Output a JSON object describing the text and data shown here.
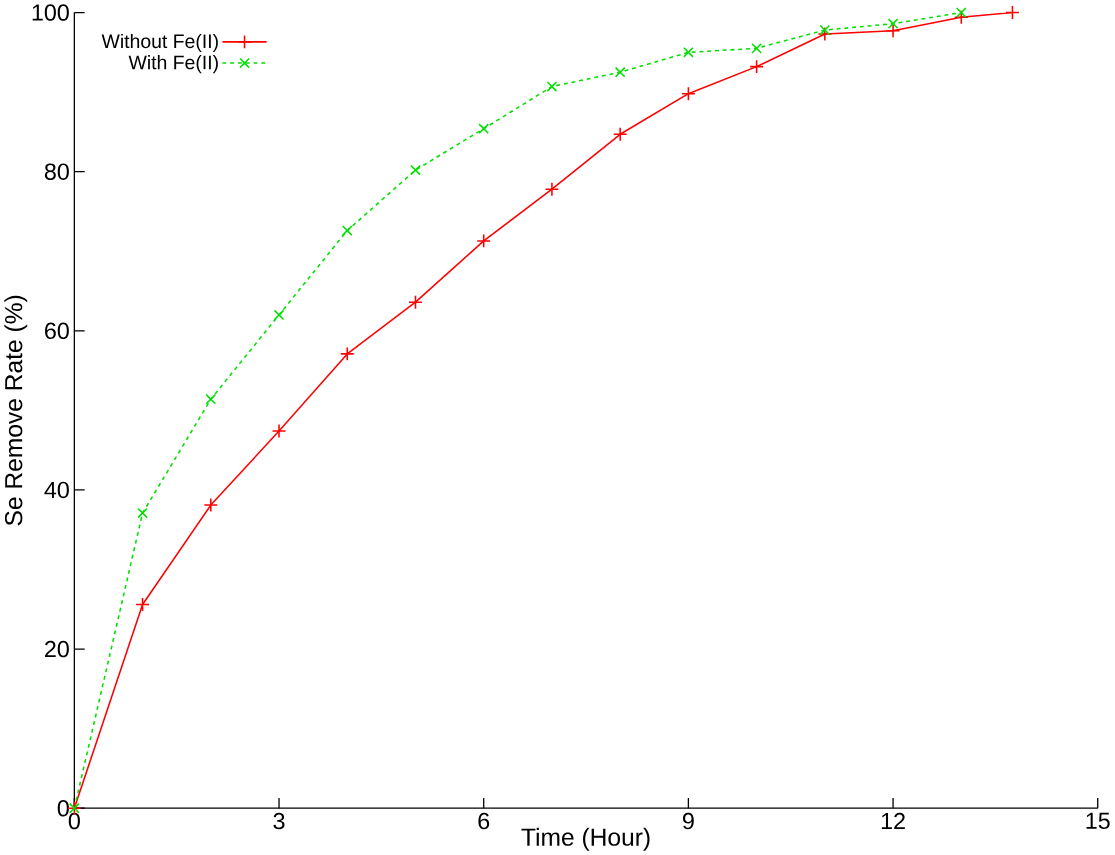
{
  "chart_data": {
    "type": "line",
    "xlabel": "Time (Hour)",
    "ylabel": "Se Remove Rate (%)",
    "xlim": [
      0,
      15
    ],
    "ylim": [
      0,
      100
    ],
    "xticks": [
      0,
      3,
      6,
      9,
      12,
      15
    ],
    "yticks": [
      0,
      20,
      40,
      60,
      80,
      100
    ],
    "grid": false,
    "legend": "top left",
    "series": [
      {
        "name": "Without Fe(II)",
        "color": "#ff0000",
        "marker": "plus",
        "line_style": "solid",
        "x": [
          0,
          1,
          2,
          3,
          4,
          5,
          6,
          7,
          8,
          9,
          10,
          11,
          12,
          13,
          13.75
        ],
        "values": [
          0,
          25.6,
          38.1,
          47.4,
          57.1,
          63.6,
          71.3,
          77.8,
          84.7,
          89.8,
          93.2,
          97.3,
          97.7,
          99.4,
          100
        ]
      },
      {
        "name": "With Fe(II)",
        "color": "#00e000",
        "marker": "cross",
        "line_style": "dashed",
        "x": [
          0,
          1,
          2,
          3,
          4,
          5,
          6,
          7,
          8,
          9,
          10,
          11,
          12,
          13
        ],
        "values": [
          0,
          37.1,
          51.4,
          62.0,
          72.6,
          80.2,
          85.4,
          90.7,
          92.5,
          95.0,
          95.5,
          97.8,
          98.6,
          100
        ]
      }
    ]
  }
}
